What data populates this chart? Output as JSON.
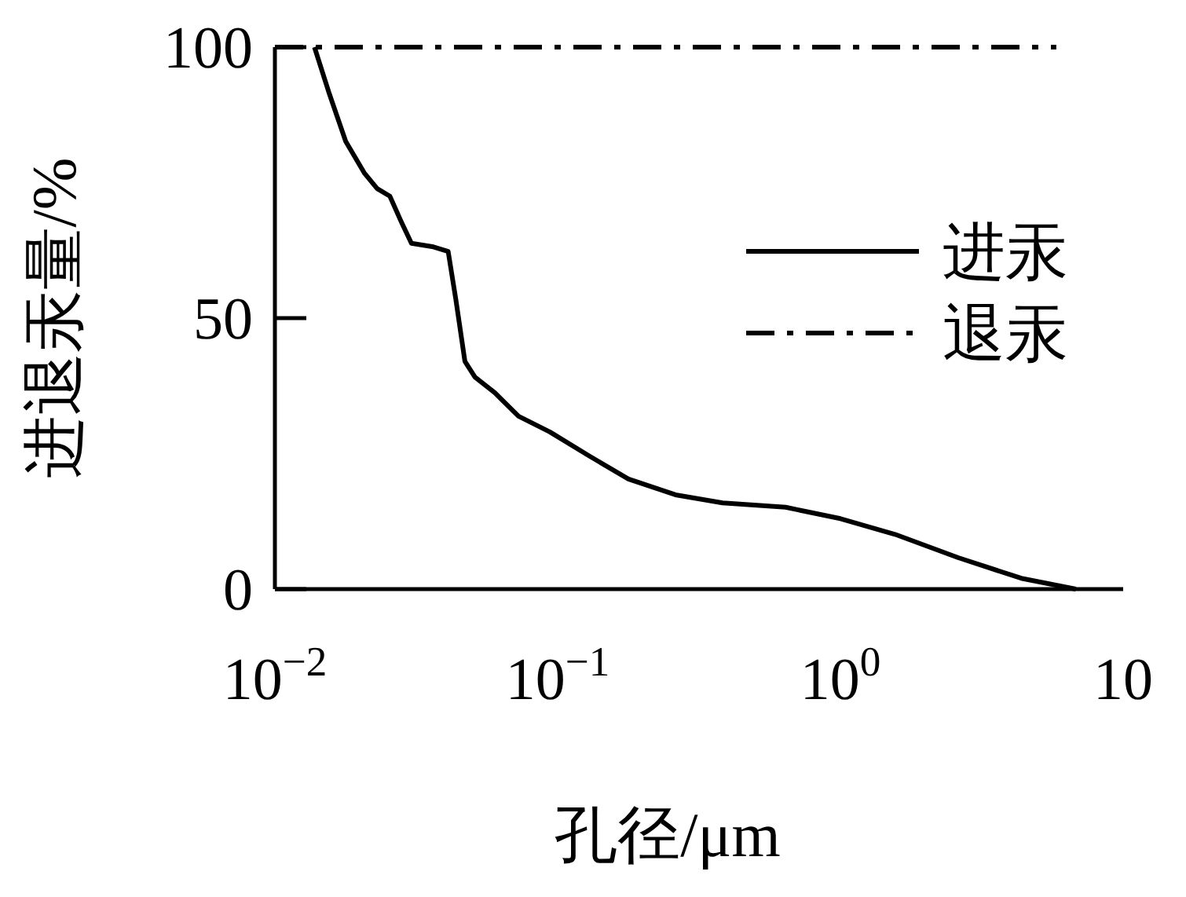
{
  "chart_data": {
    "type": "line",
    "xlabel": "孔径/μm",
    "ylabel": "进退汞量/%",
    "log": "x",
    "xlim": [
      0.01,
      10
    ],
    "ylim": [
      0,
      100
    ],
    "xticks": [
      {
        "value": 0.01,
        "label": "10$^{−2}$"
      },
      {
        "value": 0.1,
        "label": "10$^{−1}$"
      },
      {
        "value": 1,
        "label": "10$^{0}$"
      },
      {
        "value": 10,
        "label": "10"
      }
    ],
    "yticks": [
      0,
      50,
      100
    ],
    "grid": false,
    "legend": "right",
    "marker": "none",
    "series": [
      {
        "name": "进汞",
        "color": "#000000",
        "line_style": "solid",
        "x": [
          0.0138,
          0.0156,
          0.0178,
          0.0207,
          0.023,
          0.0255,
          0.0278,
          0.0304,
          0.036,
          0.041,
          0.0436,
          0.047,
          0.051,
          0.06,
          0.0727,
          0.0938,
          0.129,
          0.178,
          0.261,
          0.383,
          0.64,
          1.0,
          1.56,
          2.61,
          4.36,
          6.8
        ],
        "values": [
          100,
          91.3,
          82.6,
          76.8,
          73.9,
          72.5,
          68.1,
          63.8,
          63.2,
          62.3,
          53.6,
          42,
          39.1,
          36.2,
          31.9,
          29,
          24.6,
          20.3,
          17.4,
          15.9,
          15.1,
          13,
          10.1,
          5.8,
          2,
          0
        ]
      },
      {
        "name": "退汞",
        "color": "#000000",
        "line_style": "dashed",
        "x": [
          0.01,
          5.8
        ],
        "values": [
          100,
          100
        ]
      }
    ]
  }
}
